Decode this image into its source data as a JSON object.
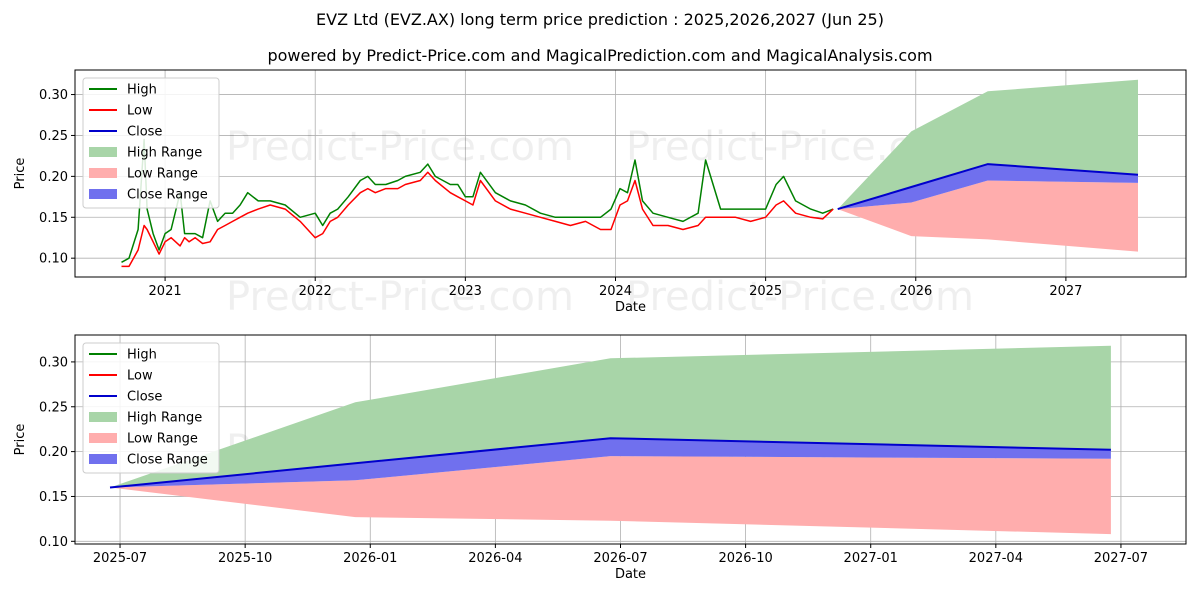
{
  "title": "EVZ Ltd (EVZ.AX) long term price prediction : 2025,2026,2027 (Jun 25)",
  "subtitle": "powered by Predict-Price.com and MagicalPrediction.com and MagicalAnalysis.com",
  "watermark": "Predict-Price.com",
  "colors": {
    "high": "#008000",
    "low": "#ff0000",
    "close": "#0000cc",
    "high_range": "#a8d5a8",
    "low_range": "#ffadad",
    "close_range": "#7070ee"
  },
  "chart_data": [
    {
      "type": "line",
      "xlabel": "Date",
      "ylabel": "Price",
      "x_unit": "year",
      "xlim": [
        2020.4,
        2027.8
      ],
      "ylim": [
        0.077,
        0.33
      ],
      "x_ticks": [
        2021,
        2022,
        2023,
        2024,
        2025,
        2026,
        2027
      ],
      "x_tick_labels": [
        "2021",
        "2022",
        "2023",
        "2024",
        "2025",
        "2026",
        "2027"
      ],
      "y_ticks": [
        0.1,
        0.15,
        0.2,
        0.25,
        0.3
      ],
      "y_tick_labels": [
        "0.10",
        "0.15",
        "0.20",
        "0.25",
        "0.30"
      ],
      "grid": true,
      "legend_position": "top-left",
      "legend": [
        "High",
        "Low",
        "Close",
        "High Range",
        "Low Range",
        "Close Range"
      ],
      "history": {
        "x": [
          2020.71,
          2020.76,
          2020.82,
          2020.86,
          2020.88,
          2020.92,
          2020.96,
          2021.0,
          2021.04,
          2021.1,
          2021.13,
          2021.16,
          2021.2,
          2021.25,
          2021.3,
          2021.35,
          2021.4,
          2021.45,
          2021.5,
          2021.55,
          2021.62,
          2021.7,
          2021.8,
          2021.9,
          2022.0,
          2022.05,
          2022.1,
          2022.15,
          2022.22,
          2022.3,
          2022.35,
          2022.4,
          2022.47,
          2022.55,
          2022.6,
          2022.7,
          2022.75,
          2022.8,
          2022.9,
          2022.95,
          2023.0,
          2023.05,
          2023.1,
          2023.2,
          2023.3,
          2023.4,
          2023.5,
          2023.6,
          2023.7,
          2023.8,
          2023.9,
          2023.97,
          2024.03,
          2024.08,
          2024.13,
          2024.18,
          2024.25,
          2024.35,
          2024.45,
          2024.55,
          2024.6,
          2024.7,
          2024.8,
          2024.9,
          2025.0,
          2025.07,
          2025.12,
          2025.2,
          2025.3,
          2025.38,
          2025.45
        ],
        "low": [
          0.09,
          0.09,
          0.11,
          0.14,
          0.135,
          0.12,
          0.105,
          0.12,
          0.125,
          0.115,
          0.125,
          0.12,
          0.125,
          0.118,
          0.12,
          0.135,
          0.14,
          0.145,
          0.15,
          0.155,
          0.16,
          0.165,
          0.16,
          0.145,
          0.125,
          0.13,
          0.145,
          0.15,
          0.165,
          0.18,
          0.185,
          0.18,
          0.185,
          0.185,
          0.19,
          0.195,
          0.205,
          0.195,
          0.18,
          0.175,
          0.17,
          0.165,
          0.195,
          0.17,
          0.16,
          0.155,
          0.15,
          0.145,
          0.14,
          0.145,
          0.135,
          0.135,
          0.165,
          0.17,
          0.195,
          0.16,
          0.14,
          0.14,
          0.135,
          0.14,
          0.15,
          0.15,
          0.15,
          0.145,
          0.15,
          0.165,
          0.17,
          0.155,
          0.15,
          0.148,
          0.16
        ],
        "high": [
          0.095,
          0.1,
          0.135,
          0.245,
          0.16,
          0.13,
          0.11,
          0.13,
          0.135,
          0.18,
          0.13,
          0.13,
          0.13,
          0.125,
          0.17,
          0.145,
          0.155,
          0.155,
          0.165,
          0.18,
          0.17,
          0.17,
          0.165,
          0.15,
          0.155,
          0.14,
          0.155,
          0.16,
          0.175,
          0.195,
          0.2,
          0.19,
          0.19,
          0.195,
          0.2,
          0.205,
          0.215,
          0.2,
          0.19,
          0.19,
          0.175,
          0.175,
          0.205,
          0.18,
          0.17,
          0.165,
          0.155,
          0.15,
          0.15,
          0.15,
          0.15,
          0.16,
          0.185,
          0.18,
          0.22,
          0.17,
          0.155,
          0.15,
          0.145,
          0.155,
          0.22,
          0.16,
          0.16,
          0.16,
          0.16,
          0.19,
          0.2,
          0.17,
          0.16,
          0.155,
          0.16
        ]
      },
      "forecast": {
        "x": [
          2025.48,
          2025.97,
          2026.48,
          2027.48
        ],
        "high_range": [
          0.16,
          0.255,
          0.304,
          0.318
        ],
        "close_upper": [
          0.16,
          0.187,
          0.215,
          0.202
        ],
        "close": [
          0.16,
          0.187,
          0.215,
          0.202
        ],
        "close_lower": [
          0.16,
          0.168,
          0.195,
          0.192
        ],
        "low_range": [
          0.16,
          0.127,
          0.123,
          0.108
        ]
      }
    },
    {
      "type": "line",
      "xlabel": "Date",
      "ylabel": "Price",
      "x_unit": "month",
      "xlim": [
        2025.41,
        2027.63
      ],
      "ylim": [
        0.097,
        0.33
      ],
      "x_ticks": [
        2025.5,
        2025.75,
        2026.0,
        2026.25,
        2026.5,
        2026.75,
        2027.0,
        2027.25,
        2027.5
      ],
      "x_tick_labels": [
        "2025-07",
        "2025-10",
        "2026-01",
        "2026-04",
        "2026-07",
        "2026-10",
        "2027-01",
        "2027-04",
        "2027-07"
      ],
      "y_ticks": [
        0.1,
        0.15,
        0.2,
        0.25,
        0.3
      ],
      "y_tick_labels": [
        "0.10",
        "0.15",
        "0.20",
        "0.25",
        "0.30"
      ],
      "grid": true,
      "legend_position": "top-left",
      "legend": [
        "High",
        "Low",
        "Close",
        "High Range",
        "Low Range",
        "Close Range"
      ],
      "forecast": {
        "x": [
          2025.48,
          2025.97,
          2026.48,
          2027.48
        ],
        "high_range": [
          0.16,
          0.255,
          0.304,
          0.318
        ],
        "close_upper": [
          0.16,
          0.187,
          0.215,
          0.202
        ],
        "close": [
          0.16,
          0.187,
          0.215,
          0.202
        ],
        "close_lower": [
          0.16,
          0.168,
          0.195,
          0.192
        ],
        "low_range": [
          0.16,
          0.127,
          0.123,
          0.108
        ]
      }
    }
  ]
}
